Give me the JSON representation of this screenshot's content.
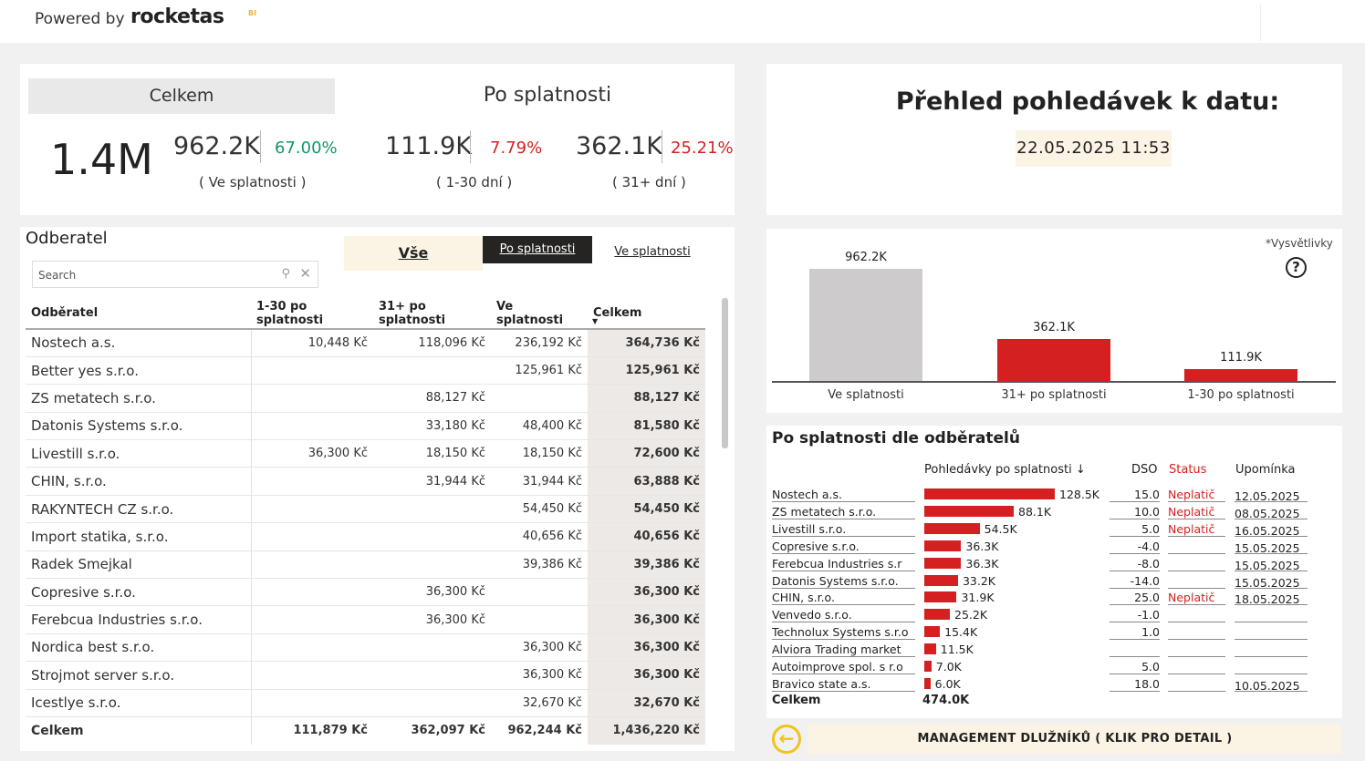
{
  "header": {
    "powered_by": "Powered by",
    "logo_text": "rocketas",
    "logo_suffix": "BI"
  },
  "kpi": {
    "celkem_label": "Celkem",
    "po_splatnosti_label": "Po splatnosti",
    "total": "1.4M",
    "ve_splatnosti_value": "962.2K",
    "ve_splatnosti_pct": "67.00%",
    "ve_splatnosti_sub": "( Ve splatnosti )",
    "d1_30_value": "111.9K",
    "d1_30_pct": "7.79%",
    "d1_30_sub": "( 1-30 dní )",
    "d31_value": "362.1K",
    "d31_pct": "25.21%",
    "d31_sub": "( 31+ dní )"
  },
  "summary": {
    "title": "Přehled pohledávek k datu:",
    "date": "22.05.2025 11:53"
  },
  "table": {
    "title": "Odberatel",
    "search_placeholder": "Search",
    "tabs": {
      "vse": "Vše",
      "po": "Po splatnosti",
      "ve": "Ve splatnosti"
    },
    "columns": [
      "Odběratel",
      "1-30 po splatnosti",
      "31+ po splatnosti",
      "Ve splatnosti",
      "Celkem"
    ],
    "rows": [
      [
        "Nostech a.s.",
        "10,448 Kč",
        "118,096 Kč",
        "236,192 Kč",
        "364,736 Kč"
      ],
      [
        "Better yes s.r.o.",
        "",
        "",
        "125,961 Kč",
        "125,961 Kč"
      ],
      [
        "ZS metatech s.r.o.",
        "",
        "88,127 Kč",
        "",
        "88,127 Kč"
      ],
      [
        "Datonis Systems s.r.o.",
        "",
        "33,180 Kč",
        "48,400 Kč",
        "81,580 Kč"
      ],
      [
        "Livestill s.r.o.",
        "36,300 Kč",
        "18,150 Kč",
        "18,150 Kč",
        "72,600 Kč"
      ],
      [
        "CHIN, s.r.o.",
        "",
        "31,944 Kč",
        "31,944 Kč",
        "63,888 Kč"
      ],
      [
        "RAKYNTECH CZ s.r.o.",
        "",
        "",
        "54,450 Kč",
        "54,450 Kč"
      ],
      [
        "Import statika, s.r.o.",
        "",
        "",
        "40,656 Kč",
        "40,656 Kč"
      ],
      [
        "Radek Smejkal",
        "",
        "",
        "39,386 Kč",
        "39,386 Kč"
      ],
      [
        "Copresive s.r.o.",
        "",
        "36,300 Kč",
        "",
        "36,300 Kč"
      ],
      [
        "Ferebcua Industries s.r.o.",
        "",
        "36,300 Kč",
        "",
        "36,300 Kč"
      ],
      [
        "Nordica best s.r.o.",
        "",
        "",
        "36,300 Kč",
        "36,300 Kč"
      ],
      [
        "Strojmot server s.r.o.",
        "",
        "",
        "36,300 Kč",
        "36,300 Kč"
      ],
      [
        "Icestlye s.r.o.",
        "",
        "",
        "32,670 Kč",
        "32,670 Kč"
      ]
    ],
    "total": [
      "Celkem",
      "111,879 Kč",
      "362,097 Kč",
      "962,244 Kč",
      "1,436,220 Kč"
    ]
  },
  "chart_data": [
    {
      "type": "bar",
      "categories": [
        "Ve splatnosti",
        "31+ po splatnosti",
        "1-30 po splatnosti"
      ],
      "values": [
        962.2,
        362.1,
        111.9
      ],
      "labels": [
        "962.2K",
        "362.1K",
        "111.9K"
      ],
      "colors": [
        "#cdcbcc",
        "#d42020",
        "#d42020"
      ],
      "legend_note": "*Vysvětlivky"
    },
    {
      "type": "table",
      "title": "Po splatnosti dle odběratelů",
      "columns": [
        "Pohledávky po splatnosti ↓",
        "DSO",
        "Status",
        "Upomínka"
      ],
      "rows": [
        {
          "name": "Nostech a.s.",
          "value": 128.5,
          "label": "128.5K",
          "dso": "15.0",
          "status": "Neplatič",
          "upominka": "12.05.2025"
        },
        {
          "name": "ZS metatech s.r.o.",
          "value": 88.1,
          "label": "88.1K",
          "dso": "10.0",
          "status": "Neplatič",
          "upominka": "08.05.2025"
        },
        {
          "name": "Livestill s.r.o.",
          "value": 54.5,
          "label": "54.5K",
          "dso": "5.0",
          "status": "Neplatič",
          "upominka": "16.05.2025"
        },
        {
          "name": "Copresive s.r.o.",
          "value": 36.3,
          "label": "36.3K",
          "dso": "-4.0",
          "status": "",
          "upominka": "15.05.2025"
        },
        {
          "name": "Ferebcua Industries s.r",
          "value": 36.3,
          "label": "36.3K",
          "dso": "-8.0",
          "status": "",
          "upominka": "15.05.2025"
        },
        {
          "name": "Datonis Systems s.r.o.",
          "value": 33.2,
          "label": "33.2K",
          "dso": "-14.0",
          "status": "",
          "upominka": "15.05.2025"
        },
        {
          "name": "CHIN, s.r.o.",
          "value": 31.9,
          "label": "31.9K",
          "dso": "25.0",
          "status": "Neplatič",
          "upominka": "18.05.2025"
        },
        {
          "name": "Venvedo s.r.o.",
          "value": 25.2,
          "label": "25.2K",
          "dso": "-1.0",
          "status": "",
          "upominka": ""
        },
        {
          "name": "Technolux Systems s.r.o",
          "value": 15.4,
          "label": "15.4K",
          "dso": "1.0",
          "status": "",
          "upominka": ""
        },
        {
          "name": "Alviora Trading market",
          "value": 11.5,
          "label": "11.5K",
          "dso": "",
          "status": "",
          "upominka": ""
        },
        {
          "name": "Autoimprove spol. s r.o",
          "value": 7.0,
          "label": "7.0K",
          "dso": "5.0",
          "status": "",
          "upominka": ""
        },
        {
          "name": "Bravico state a.s.",
          "value": 6.0,
          "label": "6.0K",
          "dso": "18.0",
          "status": "",
          "upominka": "10.05.2025"
        }
      ],
      "total_label": "Celkem",
      "total_value": "474.0K"
    }
  ],
  "management_button": "MANAGEMENT DLUŽNÍKŮ ( KLIK PRO DETAIL )"
}
